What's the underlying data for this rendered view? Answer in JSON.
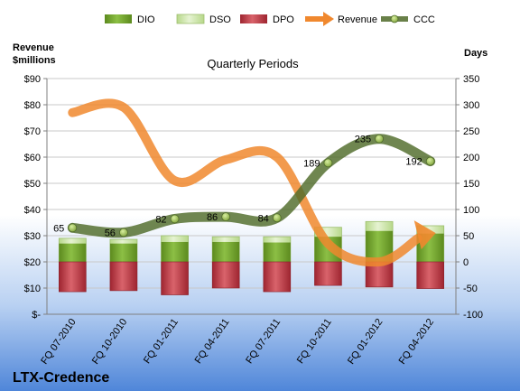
{
  "chart_data": {
    "type": "bar",
    "title": "Quarterly Periods",
    "company": "LTX-Credence",
    "left_axis_title_line1": "Revenue",
    "left_axis_title_line2": "$millions",
    "right_axis_title": "Days",
    "left_ticks": [
      "$-",
      "$10",
      "$20",
      "$30",
      "$40",
      "$50",
      "$60",
      "$70",
      "$80",
      "$90"
    ],
    "right_ticks": [
      "-100",
      "-50",
      "0",
      "50",
      "100",
      "150",
      "200",
      "250",
      "300",
      "350"
    ],
    "left_ylim": [
      0,
      90
    ],
    "right_ylim": [
      -100,
      350
    ],
    "categories": [
      "FQ 07-2010",
      "FQ 10-2010",
      "FQ 01-2011",
      "FQ 04-2011",
      "FQ 07-2011",
      "FQ 10-2011",
      "FQ 01-2012",
      "FQ 04-2012"
    ],
    "series": [
      {
        "name": "DIO",
        "axis": "right",
        "values": [
          35,
          35,
          38,
          38,
          37,
          48,
          59,
          54
        ]
      },
      {
        "name": "DSO",
        "axis": "right",
        "values": [
          45,
          43,
          50,
          48,
          48,
          66,
          77,
          69
        ]
      },
      {
        "name": "DPO",
        "axis": "right",
        "values": [
          -57,
          -55,
          -63,
          -50,
          -57,
          -45,
          -48,
          -51
        ]
      },
      {
        "name": "Revenue",
        "axis": "left",
        "values": [
          77,
          79,
          51,
          59,
          60,
          27,
          20,
          31
        ]
      },
      {
        "name": "CCC",
        "axis": "right",
        "values": [
          65,
          56,
          82,
          86,
          84,
          189,
          235,
          192
        ]
      }
    ],
    "ccc_labels": [
      "65",
      "56",
      "82",
      "86",
      "84",
      "189",
      "235",
      "192"
    ],
    "legend": [
      "DIO",
      "DSO",
      "DPO",
      "Revenue",
      "CCC"
    ],
    "legend_position": "top",
    "colors": {
      "DIO": "#6E9A2A",
      "DSO": "#C9E3A3",
      "DPO": "#B8303A",
      "Revenue": "#F0882E",
      "CCC": "#4F6B2A",
      "background_top": "#FFFFFF",
      "background_bottom": "#4F86D9"
    }
  }
}
